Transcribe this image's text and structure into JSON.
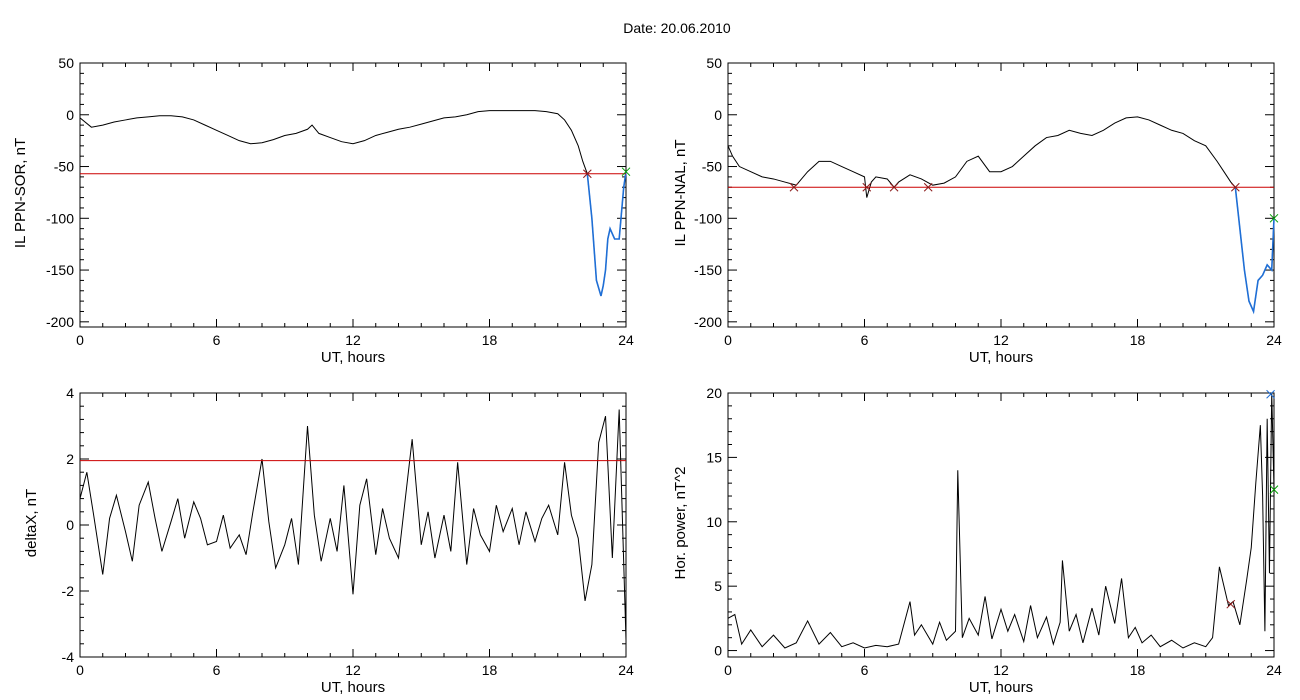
{
  "page": {
    "title": "Date:  20.06.2010"
  },
  "colors": {
    "threshold": "#cc0000",
    "event": "#1f6fd6",
    "marker_red": "#8b1a1a",
    "marker_green": "#00a000",
    "trace": "#000000"
  },
  "chart_data": [
    {
      "type": "line",
      "ylabel": "IL PPN-SOR, nT",
      "xlabel": "UT, hours",
      "xlim": [
        0,
        24
      ],
      "ylim": [
        -205,
        50
      ],
      "xticks": [
        0,
        6,
        12,
        18,
        24
      ],
      "yticks": [
        50,
        0,
        -50,
        -100,
        -150,
        -200
      ],
      "threshold": -57,
      "x": [
        0,
        0.5,
        1,
        1.5,
        2,
        2.5,
        3,
        3.5,
        4,
        4.5,
        5,
        5.5,
        6,
        6.5,
        7,
        7.5,
        8,
        8.5,
        9,
        9.5,
        10,
        10.2,
        10.5,
        11,
        11.5,
        12,
        12.5,
        13,
        13.5,
        14,
        14.5,
        15,
        15.5,
        16,
        16.5,
        17,
        17.5,
        18,
        18.5,
        19,
        19.5,
        20,
        20.5,
        21,
        21.3,
        21.6,
        21.9,
        22.1,
        22.3,
        22.5,
        22.7,
        22.9,
        23.0,
        23.1,
        23.2,
        23.3,
        23.5,
        23.7,
        23.9,
        24
      ],
      "values": [
        -3,
        -12,
        -10,
        -7,
        -5,
        -3,
        -2,
        -1,
        -1,
        -2,
        -5,
        -10,
        -15,
        -20,
        -25,
        -28,
        -27,
        -24,
        -20,
        -18,
        -14,
        -10,
        -18,
        -22,
        -26,
        -28,
        -25,
        -20,
        -17,
        -14,
        -12,
        -9,
        -6,
        -3,
        -2,
        0,
        3,
        4,
        4,
        4,
        4,
        4,
        3,
        1,
        -5,
        -15,
        -30,
        -45,
        -57,
        -100,
        -160,
        -175,
        -165,
        -150,
        -120,
        -110,
        -120,
        -120,
        -70,
        -55
      ],
      "event_from_x": 22.3,
      "markers": [
        {
          "x": 22.3,
          "y": -57,
          "color": "marker_red"
        },
        {
          "x": 24.0,
          "y": -55,
          "color": "marker_green"
        }
      ]
    },
    {
      "type": "line",
      "ylabel": "IL PPN-NAL, nT",
      "xlabel": "UT, hours",
      "xlim": [
        0,
        24
      ],
      "ylim": [
        -205,
        50
      ],
      "xticks": [
        0,
        6,
        12,
        18,
        24
      ],
      "yticks": [
        50,
        0,
        -50,
        -100,
        -150,
        -200
      ],
      "threshold": -70,
      "x": [
        0,
        0.2,
        0.5,
        1,
        1.5,
        2,
        2.5,
        3,
        3.5,
        4,
        4.5,
        5,
        5.5,
        6,
        6.1,
        6.3,
        6.5,
        7,
        7.3,
        7.5,
        8,
        8.5,
        9,
        9.5,
        10,
        10.5,
        11,
        11.5,
        12,
        12.5,
        13,
        13.5,
        14,
        14.5,
        15,
        15.5,
        16,
        16.5,
        17,
        17.5,
        18,
        18.5,
        19,
        19.5,
        20,
        20.5,
        21,
        21.5,
        21.8,
        22.1,
        22.3,
        22.5,
        22.7,
        22.9,
        23.1,
        23.3,
        23.5,
        23.7,
        23.9,
        24
      ],
      "values": [
        -30,
        -40,
        -50,
        -55,
        -60,
        -62,
        -65,
        -68,
        -55,
        -45,
        -45,
        -50,
        -55,
        -60,
        -80,
        -65,
        -60,
        -62,
        -70,
        -65,
        -58,
        -62,
        -68,
        -66,
        -60,
        -45,
        -40,
        -55,
        -55,
        -50,
        -40,
        -30,
        -22,
        -20,
        -15,
        -18,
        -20,
        -15,
        -8,
        -3,
        -2,
        -5,
        -10,
        -15,
        -18,
        -25,
        -30,
        -45,
        -55,
        -65,
        -70,
        -110,
        -150,
        -180,
        -190,
        -160,
        -155,
        -145,
        -150,
        -100
      ],
      "event_from_x": 22.3,
      "markers": [
        {
          "x": 2.9,
          "y": -70,
          "color": "marker_red"
        },
        {
          "x": 6.1,
          "y": -70,
          "color": "marker_red"
        },
        {
          "x": 7.3,
          "y": -70,
          "color": "marker_red"
        },
        {
          "x": 8.8,
          "y": -70,
          "color": "marker_red"
        },
        {
          "x": 22.3,
          "y": -70,
          "color": "marker_red"
        },
        {
          "x": 24.0,
          "y": -100,
          "color": "marker_green"
        }
      ]
    },
    {
      "type": "line",
      "ylabel": "deltaX, nT",
      "xlabel": "UT, hours",
      "xlim": [
        0,
        24
      ],
      "ylim": [
        -4,
        4
      ],
      "xticks": [
        0,
        6,
        12,
        18,
        24
      ],
      "yticks": [
        4,
        2,
        0,
        -2,
        -4
      ],
      "threshold": 1.95,
      "x": [
        0,
        0.3,
        0.6,
        1,
        1.3,
        1.6,
        2,
        2.3,
        2.6,
        3,
        3.3,
        3.6,
        4,
        4.3,
        4.6,
        5,
        5.3,
        5.6,
        6,
        6.3,
        6.6,
        7,
        7.3,
        7.6,
        8,
        8.3,
        8.6,
        9,
        9.3,
        9.6,
        10,
        10.3,
        10.6,
        11,
        11.3,
        11.6,
        12,
        12.3,
        12.6,
        13,
        13.3,
        13.6,
        14,
        14.3,
        14.6,
        15,
        15.3,
        15.6,
        16,
        16.3,
        16.6,
        17,
        17.3,
        17.6,
        18,
        18.3,
        18.6,
        19,
        19.3,
        19.6,
        20,
        20.3,
        20.6,
        21,
        21.3,
        21.6,
        21.9,
        22.2,
        22.5,
        22.8,
        23.1,
        23.4,
        23.7,
        24
      ],
      "values": [
        0.8,
        1.6,
        0.3,
        -1.5,
        0.2,
        0.9,
        -0.2,
        -1.1,
        0.6,
        1.3,
        0.2,
        -0.8,
        0.1,
        0.8,
        -0.4,
        0.7,
        0.2,
        -0.6,
        -0.5,
        0.3,
        -0.7,
        -0.3,
        -0.9,
        0.4,
        2.0,
        0.1,
        -1.3,
        -0.6,
        0.2,
        -1.2,
        3.0,
        0.3,
        -1.1,
        0.2,
        -0.8,
        1.2,
        -2.1,
        0.6,
        1.4,
        -0.9,
        0.5,
        -0.4,
        -1.0,
        0.8,
        2.6,
        -0.6,
        0.4,
        -1.0,
        0.3,
        -0.8,
        1.9,
        -1.2,
        0.5,
        -0.3,
        -0.8,
        0.6,
        -0.2,
        0.5,
        -0.6,
        0.4,
        -0.5,
        0.2,
        0.6,
        -0.3,
        1.9,
        0.3,
        -0.4,
        -2.3,
        -1.2,
        2.5,
        3.3,
        -1.0,
        3.5,
        -3.5
      ]
    },
    {
      "type": "line",
      "ylabel": "Hor. power, nT^2",
      "xlabel": "UT, hours",
      "xlim": [
        0,
        24
      ],
      "ylim": [
        -0.5,
        20
      ],
      "xticks": [
        0,
        6,
        12,
        18,
        24
      ],
      "yticks": [
        20,
        15,
        10,
        5,
        0
      ],
      "x": [
        0,
        0.3,
        0.6,
        1,
        1.5,
        2,
        2.5,
        3,
        3.5,
        4,
        4.5,
        5,
        5.5,
        6,
        6.5,
        7,
        7.5,
        8,
        8.2,
        8.5,
        9,
        9.3,
        9.6,
        10,
        10.1,
        10.3,
        10.6,
        11,
        11.3,
        11.6,
        12,
        12.3,
        12.6,
        13,
        13.3,
        13.6,
        14,
        14.3,
        14.6,
        14.7,
        15,
        15.3,
        15.6,
        16,
        16.3,
        16.6,
        17,
        17.3,
        17.6,
        17.9,
        18.2,
        18.6,
        19,
        19.5,
        20,
        20.5,
        21,
        21.3,
        21.6,
        22,
        22.2,
        22.5,
        22.8,
        23.0,
        23.2,
        23.4,
        23.5,
        23.6,
        23.7,
        23.8,
        23.9,
        24
      ],
      "values": [
        2.5,
        2.8,
        0.5,
        1.6,
        0.3,
        1.2,
        0.2,
        0.6,
        2.3,
        0.5,
        1.4,
        0.3,
        0.6,
        0.2,
        0.4,
        0.3,
        0.5,
        3.8,
        1.2,
        2.0,
        0.5,
        2.2,
        0.8,
        1.5,
        14.0,
        1.0,
        2.5,
        1.2,
        4.2,
        0.9,
        3.2,
        1.5,
        2.8,
        0.7,
        3.5,
        1.0,
        2.6,
        0.5,
        2.2,
        7.0,
        1.5,
        2.8,
        0.6,
        3.3,
        1.2,
        5.0,
        2.1,
        5.6,
        1.0,
        1.8,
        0.6,
        1.2,
        0.3,
        0.8,
        0.2,
        0.6,
        0.3,
        1.0,
        6.5,
        3.5,
        3.8,
        2.0,
        5.5,
        8.0,
        13.0,
        17.5,
        12.0,
        1.5,
        18.0,
        6.0,
        20.0,
        12.5
      ],
      "markers": [
        {
          "x": 22.1,
          "y": 3.6,
          "color": "marker_red"
        },
        {
          "x": 23.85,
          "y": 19.9,
          "color": "event"
        },
        {
          "x": 24.0,
          "y": 12.5,
          "color": "marker_green"
        }
      ]
    }
  ]
}
